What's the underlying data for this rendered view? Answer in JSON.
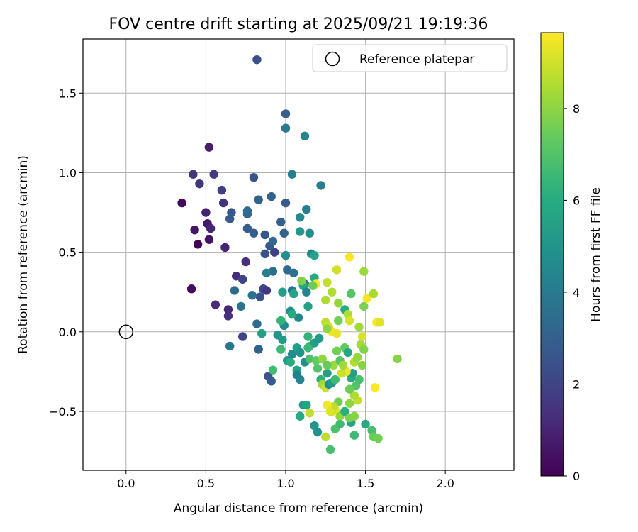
{
  "chart_data": {
    "type": "scatter",
    "title": "FOV centre drift starting at 2025/09/21 19:19:36",
    "xlabel": "Angular distance from reference (arcmin)",
    "ylabel": "Rotation from reference (arcmin)",
    "xlim": [
      -0.27,
      2.43
    ],
    "ylim": [
      -0.87,
      1.84
    ],
    "xticks": [
      "0.0",
      "0.5",
      "1.0",
      "1.5",
      "2.0"
    ],
    "xtick_values": [
      0.0,
      0.5,
      1.0,
      1.5,
      2.0
    ],
    "yticks": [
      "−0.5",
      "0.0",
      "0.5",
      "1.0",
      "1.5"
    ],
    "ytick_values": [
      -0.5,
      0.0,
      0.5,
      1.0,
      1.5
    ],
    "grid": true,
    "legend": {
      "position": "top-right",
      "label": "Reference platepar"
    },
    "reference_point": {
      "x": 0.0,
      "y": 0.0
    },
    "colorbar": {
      "label": "Hours from first FF file",
      "colormap": "viridis",
      "range": [
        0,
        9.65
      ],
      "ticks": [
        "0",
        "2",
        "4",
        "6",
        "8"
      ],
      "tick_values": [
        0,
        2,
        4,
        6,
        8
      ]
    },
    "series": [
      {
        "name": "FOV centre drift",
        "points": [
          {
            "x": 0.35,
            "y": 0.81,
            "h": 0.2
          },
          {
            "x": 0.45,
            "y": 0.55,
            "h": 0.05
          },
          {
            "x": 0.41,
            "y": 0.27,
            "h": 0.3
          },
          {
            "x": 0.52,
            "y": 0.58,
            "h": 0.5
          },
          {
            "x": 0.43,
            "y": 0.64,
            "h": 0.6
          },
          {
            "x": 0.52,
            "y": 1.16,
            "h": 0.8
          },
          {
            "x": 0.51,
            "y": 0.68,
            "h": 0.7
          },
          {
            "x": 0.5,
            "y": 0.75,
            "h": 0.9
          },
          {
            "x": 0.53,
            "y": 0.65,
            "h": 1.0
          },
          {
            "x": 0.62,
            "y": 0.53,
            "h": 1.0
          },
          {
            "x": 0.64,
            "y": 0.14,
            "h": 1.1
          },
          {
            "x": 0.56,
            "y": 0.17,
            "h": 1.2
          },
          {
            "x": 0.64,
            "y": 0.1,
            "h": 1.3
          },
          {
            "x": 0.69,
            "y": 0.35,
            "h": 1.2
          },
          {
            "x": 0.75,
            "y": 0.44,
            "h": 1.3
          },
          {
            "x": 0.61,
            "y": 0.81,
            "h": 1.4
          },
          {
            "x": 0.46,
            "y": 0.93,
            "h": 1.5
          },
          {
            "x": 0.42,
            "y": 0.99,
            "h": 1.6
          },
          {
            "x": 0.55,
            "y": 0.99,
            "h": 1.7
          },
          {
            "x": 0.6,
            "y": 0.89,
            "h": 1.8
          },
          {
            "x": 0.73,
            "y": -0.03,
            "h": 2.0
          },
          {
            "x": 0.73,
            "y": 0.33,
            "h": 2.0
          },
          {
            "x": 0.86,
            "y": 0.27,
            "h": 2.2
          },
          {
            "x": 0.88,
            "y": 0.26,
            "h": 1.6
          },
          {
            "x": 0.84,
            "y": 0.22,
            "h": 2.4
          },
          {
            "x": 0.89,
            "y": -0.28,
            "h": 2.5
          },
          {
            "x": 0.82,
            "y": 1.71,
            "h": 2.4
          },
          {
            "x": 0.65,
            "y": 0.71,
            "h": 2.8
          },
          {
            "x": 0.66,
            "y": 0.75,
            "h": 2.7
          },
          {
            "x": 0.76,
            "y": 0.65,
            "h": 2.9
          },
          {
            "x": 0.8,
            "y": 0.62,
            "h": 2.9
          },
          {
            "x": 0.87,
            "y": 0.61,
            "h": 2.6
          },
          {
            "x": 0.93,
            "y": 0.5,
            "h": 1.9
          },
          {
            "x": 0.87,
            "y": 0.49,
            "h": 2.5
          },
          {
            "x": 0.9,
            "y": 0.54,
            "h": 2.6
          },
          {
            "x": 0.8,
            "y": 0.97,
            "h": 2.6
          },
          {
            "x": 0.91,
            "y": 0.85,
            "h": 3.0
          },
          {
            "x": 0.83,
            "y": 0.83,
            "h": 3.1
          },
          {
            "x": 1.0,
            "y": 0.81,
            "h": 2.8
          },
          {
            "x": 0.97,
            "y": 0.69,
            "h": 3.0
          },
          {
            "x": 0.99,
            "y": 0.62,
            "h": 3.1
          },
          {
            "x": 0.92,
            "y": 0.57,
            "h": 3.3
          },
          {
            "x": 0.76,
            "y": 0.74,
            "h": 3.2
          },
          {
            "x": 0.76,
            "y": 0.76,
            "h": 3.4
          },
          {
            "x": 0.68,
            "y": 0.26,
            "h": 3.4
          },
          {
            "x": 0.72,
            "y": 0.16,
            "h": 3.7
          },
          {
            "x": 0.79,
            "y": 0.23,
            "h": 3.6
          },
          {
            "x": 0.82,
            "y": 0.05,
            "h": 3.4
          },
          {
            "x": 0.83,
            "y": -0.11,
            "h": 3.0
          },
          {
            "x": 0.91,
            "y": -0.31,
            "h": 2.8
          },
          {
            "x": 0.92,
            "y": 0.38,
            "h": 3.5
          },
          {
            "x": 0.88,
            "y": 0.37,
            "h": 4.1
          },
          {
            "x": 0.65,
            "y": -0.09,
            "h": 3.8
          },
          {
            "x": 1.0,
            "y": 1.37,
            "h": 2.9
          },
          {
            "x": 1.0,
            "y": 1.28,
            "h": 3.9
          },
          {
            "x": 1.12,
            "y": 1.23,
            "h": 4.4
          },
          {
            "x": 1.04,
            "y": 0.99,
            "h": 4.2
          },
          {
            "x": 1.22,
            "y": 0.92,
            "h": 4.1
          },
          {
            "x": 1.13,
            "y": 0.77,
            "h": 4.1
          },
          {
            "x": 1.09,
            "y": 0.72,
            "h": 4.6
          },
          {
            "x": 1.09,
            "y": 0.63,
            "h": 5.2
          },
          {
            "x": 1.15,
            "y": 0.62,
            "h": 4.8
          },
          {
            "x": 1.16,
            "y": 0.49,
            "h": 4.4
          },
          {
            "x": 1.18,
            "y": 0.48,
            "h": 5.6
          },
          {
            "x": 1.0,
            "y": 0.48,
            "h": 4.8
          },
          {
            "x": 1.01,
            "y": 0.39,
            "h": 3.3
          },
          {
            "x": 1.05,
            "y": 0.37,
            "h": 3.6
          },
          {
            "x": 1.12,
            "y": 0.3,
            "h": 3.5
          },
          {
            "x": 1.11,
            "y": 0.29,
            "h": 5.7
          },
          {
            "x": 1.13,
            "y": 0.25,
            "h": 4.3
          },
          {
            "x": 1.18,
            "y": 0.34,
            "h": 5.9
          },
          {
            "x": 1.04,
            "y": 0.26,
            "h": 3.7
          },
          {
            "x": 1.05,
            "y": 0.24,
            "h": 5.6
          },
          {
            "x": 0.98,
            "y": 0.25,
            "h": 5.4
          },
          {
            "x": 1.14,
            "y": 0.16,
            "h": 5.5
          },
          {
            "x": 1.08,
            "y": 0.09,
            "h": 4.4
          },
          {
            "x": 1.03,
            "y": 0.13,
            "h": 4.7
          },
          {
            "x": 1.04,
            "y": 0.11,
            "h": 5.9
          },
          {
            "x": 0.99,
            "y": 0.04,
            "h": 4.6
          },
          {
            "x": 0.97,
            "y": 0.07,
            "h": 6.3
          },
          {
            "x": 0.95,
            "y": -0.02,
            "h": 5.0
          },
          {
            "x": 0.98,
            "y": -0.05,
            "h": 5.2
          },
          {
            "x": 0.97,
            "y": -0.11,
            "h": 6.5
          },
          {
            "x": 0.92,
            "y": -0.24,
            "h": 6.7
          },
          {
            "x": 0.85,
            "y": -0.01,
            "h": 5.5
          },
          {
            "x": 1.01,
            "y": -0.18,
            "h": 5.1
          },
          {
            "x": 1.04,
            "y": -0.14,
            "h": 4.6
          },
          {
            "x": 1.07,
            "y": -0.1,
            "h": 5.5
          },
          {
            "x": 1.09,
            "y": -0.13,
            "h": 4.9
          },
          {
            "x": 1.03,
            "y": -0.19,
            "h": 6.0
          },
          {
            "x": 1.07,
            "y": -0.24,
            "h": 5.7
          },
          {
            "x": 1.07,
            "y": -0.27,
            "h": 4.2
          },
          {
            "x": 1.09,
            "y": -0.3,
            "h": 4.3
          },
          {
            "x": 1.12,
            "y": -0.19,
            "h": 4.8
          },
          {
            "x": 1.15,
            "y": -0.17,
            "h": 6.9
          },
          {
            "x": 1.15,
            "y": -0.09,
            "h": 6.5
          },
          {
            "x": 1.18,
            "y": -0.07,
            "h": 5.4
          },
          {
            "x": 1.21,
            "y": -0.04,
            "h": 5.2
          },
          {
            "x": 1.2,
            "y": -0.23,
            "h": 7.0
          },
          {
            "x": 1.22,
            "y": -0.3,
            "h": 6.2
          },
          {
            "x": 1.23,
            "y": -0.33,
            "h": 8.3
          },
          {
            "x": 1.25,
            "y": -0.35,
            "h": 8.9
          },
          {
            "x": 1.18,
            "y": -0.59,
            "h": 5.0
          },
          {
            "x": 1.2,
            "y": -0.63,
            "h": 4.9
          },
          {
            "x": 1.11,
            "y": -0.46,
            "h": 5.3
          },
          {
            "x": 1.13,
            "y": -0.46,
            "h": 5.6
          },
          {
            "x": 1.09,
            "y": -0.53,
            "h": 6.0
          },
          {
            "x": 1.15,
            "y": -0.51,
            "h": 8.8
          },
          {
            "x": 1.26,
            "y": -0.26,
            "h": 5.5
          },
          {
            "x": 1.27,
            "y": -0.33,
            "h": 4.7
          },
          {
            "x": 1.29,
            "y": -0.32,
            "h": 5.1
          },
          {
            "x": 1.3,
            "y": -0.21,
            "h": 8.2
          },
          {
            "x": 1.31,
            "y": -0.3,
            "h": 6.6
          },
          {
            "x": 1.33,
            "y": -0.44,
            "h": 7.6
          },
          {
            "x": 1.31,
            "y": -0.49,
            "h": 9.3
          },
          {
            "x": 1.29,
            "y": -0.5,
            "h": 9.0
          },
          {
            "x": 1.3,
            "y": -0.47,
            "h": 8.7
          },
          {
            "x": 1.34,
            "y": -0.53,
            "h": 8.1
          },
          {
            "x": 1.37,
            "y": -0.5,
            "h": 6.1
          },
          {
            "x": 1.4,
            "y": -0.45,
            "h": 8.0
          },
          {
            "x": 1.41,
            "y": -0.57,
            "h": 5.7
          },
          {
            "x": 1.4,
            "y": -0.54,
            "h": 7.7
          },
          {
            "x": 1.43,
            "y": -0.53,
            "h": 7.9
          },
          {
            "x": 1.45,
            "y": -0.43,
            "h": 8.8
          },
          {
            "x": 1.43,
            "y": -0.4,
            "h": 8.5
          },
          {
            "x": 1.44,
            "y": -0.34,
            "h": 7.0
          },
          {
            "x": 1.46,
            "y": -0.3,
            "h": 6.8
          },
          {
            "x": 1.4,
            "y": -0.36,
            "h": 7.5
          },
          {
            "x": 1.41,
            "y": -0.29,
            "h": 6.0
          },
          {
            "x": 1.42,
            "y": -0.26,
            "h": 5.4
          },
          {
            "x": 1.38,
            "y": -0.25,
            "h": 9.4
          },
          {
            "x": 1.35,
            "y": -0.26,
            "h": 8.9
          },
          {
            "x": 1.34,
            "y": -0.18,
            "h": 7.1
          },
          {
            "x": 1.37,
            "y": -0.1,
            "h": 7.3
          },
          {
            "x": 1.39,
            "y": -0.13,
            "h": 5.8
          },
          {
            "x": 1.43,
            "y": -0.19,
            "h": 8.5
          },
          {
            "x": 1.45,
            "y": -0.16,
            "h": 8.1
          },
          {
            "x": 1.47,
            "y": -0.08,
            "h": 8.4
          },
          {
            "x": 1.49,
            "y": -0.11,
            "h": 7.8
          },
          {
            "x": 1.48,
            "y": -0.03,
            "h": 9.1
          },
          {
            "x": 1.48,
            "y": -0.21,
            "h": 7.9
          },
          {
            "x": 1.5,
            "y": -0.58,
            "h": 5.9
          },
          {
            "x": 1.54,
            "y": -0.62,
            "h": 6.8
          },
          {
            "x": 1.55,
            "y": -0.66,
            "h": 7.4
          },
          {
            "x": 1.58,
            "y": -0.67,
            "h": 7.6
          },
          {
            "x": 1.43,
            "y": -0.65,
            "h": 6.6
          },
          {
            "x": 1.28,
            "y": -0.74,
            "h": 6.8
          },
          {
            "x": 1.25,
            "y": -0.66,
            "h": 8.7
          },
          {
            "x": 1.31,
            "y": -0.61,
            "h": 6.9
          },
          {
            "x": 1.34,
            "y": -0.58,
            "h": 6.6
          },
          {
            "x": 1.26,
            "y": -0.46,
            "h": 9.5
          },
          {
            "x": 1.28,
            "y": -0.5,
            "h": 9.2
          },
          {
            "x": 1.56,
            "y": -0.35,
            "h": 9.6
          },
          {
            "x": 1.7,
            "y": -0.17,
            "h": 7.9
          },
          {
            "x": 1.25,
            "y": 0.06,
            "h": 8.7
          },
          {
            "x": 1.27,
            "y": 0.03,
            "h": 9.1
          },
          {
            "x": 1.29,
            "y": 0.0,
            "h": 9.5
          },
          {
            "x": 1.32,
            "y": -0.01,
            "h": 9.3
          },
          {
            "x": 1.26,
            "y": 0.02,
            "h": 8.0
          },
          {
            "x": 1.33,
            "y": 0.07,
            "h": 7.6
          },
          {
            "x": 1.37,
            "y": 0.14,
            "h": 6.0
          },
          {
            "x": 1.39,
            "y": 0.11,
            "h": 8.5
          },
          {
            "x": 1.4,
            "y": 0.07,
            "h": 9.1
          },
          {
            "x": 1.46,
            "y": 0.03,
            "h": 8.3
          },
          {
            "x": 1.49,
            "y": 0.16,
            "h": 7.7
          },
          {
            "x": 1.51,
            "y": 0.21,
            "h": 9.5
          },
          {
            "x": 1.55,
            "y": 0.24,
            "h": 8.4
          },
          {
            "x": 1.57,
            "y": 0.06,
            "h": 9.6
          },
          {
            "x": 1.59,
            "y": 0.06,
            "h": 9.2
          },
          {
            "x": 1.49,
            "y": 0.38,
            "h": 8.2
          },
          {
            "x": 1.4,
            "y": 0.47,
            "h": 9.6
          },
          {
            "x": 1.32,
            "y": 0.39,
            "h": 9.0
          },
          {
            "x": 1.26,
            "y": 0.31,
            "h": 8.8
          },
          {
            "x": 1.29,
            "y": 0.25,
            "h": 8.5
          },
          {
            "x": 1.33,
            "y": 0.18,
            "h": 8.1
          },
          {
            "x": 1.25,
            "y": 0.2,
            "h": 8.5
          },
          {
            "x": 1.19,
            "y": 0.3,
            "h": 9.6
          },
          {
            "x": 1.17,
            "y": 0.29,
            "h": 7.5
          },
          {
            "x": 1.1,
            "y": 0.32,
            "h": 7.8
          },
          {
            "x": 1.41,
            "y": 0.24,
            "h": 7.1
          },
          {
            "x": 1.14,
            "y": -0.03,
            "h": 6.3
          },
          {
            "x": 1.14,
            "y": -0.1,
            "h": 6.5
          },
          {
            "x": 1.19,
            "y": -0.18,
            "h": 7.3
          },
          {
            "x": 1.23,
            "y": -0.17,
            "h": 8.0
          },
          {
            "x": 1.26,
            "y": -0.21,
            "h": 7.4
          },
          {
            "x": 1.32,
            "y": -0.12,
            "h": 7.6
          },
          {
            "x": 1.36,
            "y": -0.21,
            "h": 8.3
          }
        ]
      }
    ]
  }
}
